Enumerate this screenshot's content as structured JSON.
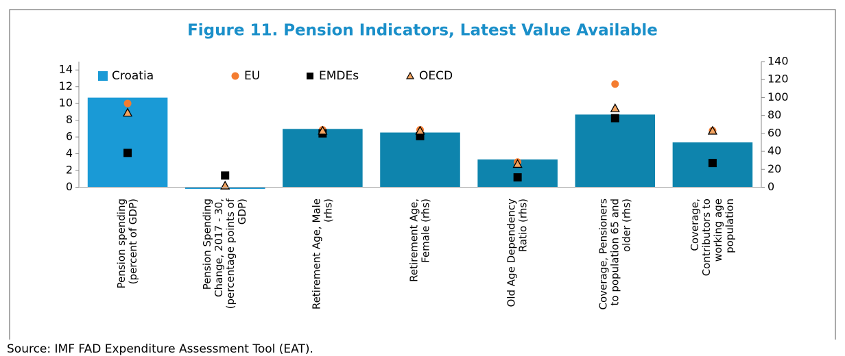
{
  "chart_data": {
    "type": "bar",
    "title": "Figure 11. Pension Indicators, Latest Value Available",
    "source": "Source: IMF FAD Expenditure Assessment Tool (EAT).",
    "categories": [
      [
        "Pension spending",
        "(percent of GDP)"
      ],
      [
        "Pension Spending",
        "Change, 2017 - 30,",
        "(percentage points of",
        "GDP)"
      ],
      [
        "Retirement Age, Male",
        "(rhs)"
      ],
      [
        "Retirement Age,",
        "Female (rhs)"
      ],
      [
        "Old Age Dependency",
        "Ratio (rhs)"
      ],
      [
        "Coverage, Pensioners",
        "to population 65 and",
        "older (rhs)"
      ],
      [
        "Coverage,",
        "Contributors to",
        "working age",
        "population"
      ]
    ],
    "series": [
      {
        "name": "Croatia",
        "mark": "bar",
        "color": "#1a9ad6",
        "values": [
          10.7,
          -0.2,
          null,
          null,
          null,
          null,
          null
        ]
      },
      {
        "name": "EU",
        "mark": "circle",
        "color": "#f47c30",
        "values": [
          10.0,
          null,
          null,
          null,
          null,
          null,
          null
        ]
      },
      {
        "name": "EMDEs",
        "mark": "square",
        "color": "#000000",
        "values": [
          4.1,
          1.4,
          null,
          null,
          null,
          null,
          null
        ]
      },
      {
        "name": "OECD",
        "mark": "triangle",
        "color": "#f4a460",
        "values": [
          8.9,
          0.2,
          null,
          null,
          null,
          null,
          null
        ]
      },
      {
        "mark": "bar",
        "color": "#0e84ad",
        "axis": "y2",
        "values": [
          null,
          null,
          65,
          61,
          31,
          81,
          50
        ]
      },
      {
        "mark": "circle",
        "color": "#f47c30",
        "axis": "y2",
        "values": [
          null,
          null,
          64,
          64,
          28,
          115,
          63
        ]
      },
      {
        "mark": "square",
        "color": "#000000",
        "axis": "y2",
        "values": [
          null,
          null,
          60,
          57,
          11,
          77,
          27
        ]
      },
      {
        "mark": "triangle",
        "color": "#f4a460",
        "axis": "y2",
        "values": [
          null,
          null,
          63,
          63,
          26,
          88,
          63
        ]
      }
    ],
    "ylim": [
      0,
      15
    ],
    "yticks": [
      0,
      2,
      4,
      6,
      8,
      10,
      12,
      14
    ],
    "y2lim": [
      0,
      140
    ],
    "y2ticks": [
      0,
      20,
      40,
      60,
      80,
      100,
      120,
      140
    ]
  }
}
